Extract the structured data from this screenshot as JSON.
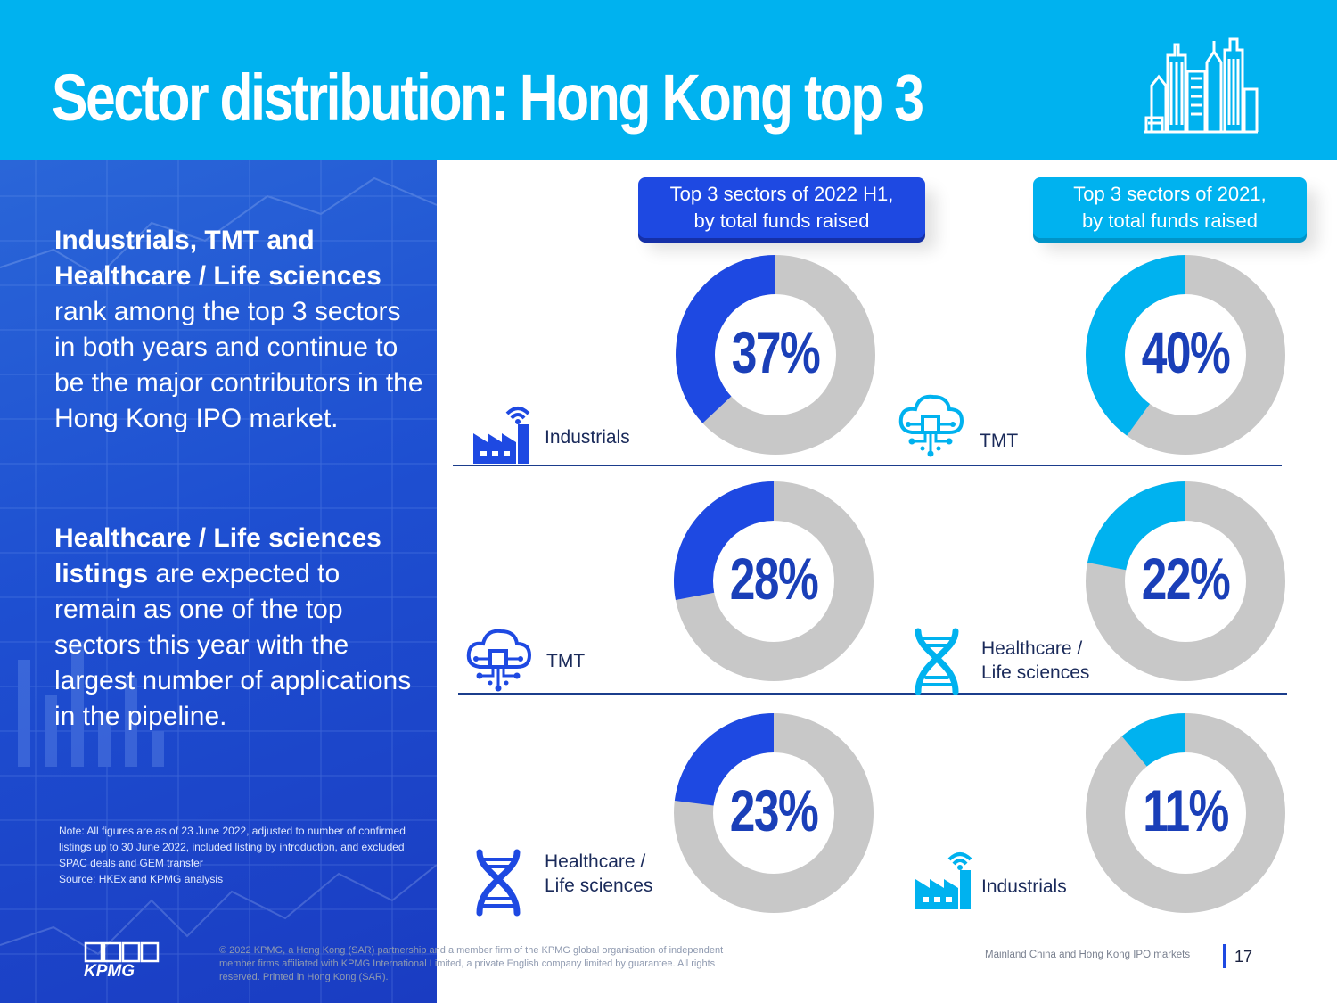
{
  "header": {
    "title": "Sector distribution: Hong Kong top 3",
    "icon": "hong-kong-skyline-icon"
  },
  "left_panel": {
    "para1_bold": "Industrials, TMT and Healthcare / Life sciences",
    "para1_rest": " rank among the top 3 sectors in both years and continue to be the major contributors in the Hong Kong IPO market.",
    "para2_bold": "Healthcare / Life sciences listings",
    "para2_rest": " are expected to remain as one of the top sectors this year with the largest number of applications in the pipeline.",
    "note_line1": "Note: All figures are as of 23 June 2022, adjusted to number of confirmed listings up to 30 June 2022, included listing by introduction, and excluded SPAC deals and GEM transfer",
    "note_line2": "Source: HKEx and KPMG analysis"
  },
  "footer": {
    "logo_text": "KPMG",
    "copyright": "© 2022 KPMG, a Hong Kong (SAR) partnership and a member firm of the KPMG global organisation of independent member firms affiliated with KPMG International Limited, a private English company limited by guarantee. All rights reserved. Printed in Hong Kong (SAR).",
    "caption": "Mainland China and Hong Kong IPO markets",
    "page_number": "17"
  },
  "colors": {
    "header_bg": "#00b2ef",
    "series_2022": "#1e49e2",
    "series_2021": "#00b2ef",
    "remainder": "#c8c8c8",
    "value_text": "#1a3fb8"
  },
  "chart_data": [
    {
      "type": "pie",
      "variant": "donut",
      "title": "Top 3 sectors of 2022 H1, by total funds raised",
      "title_line1": "Top 3 sectors of 2022 H1,",
      "title_line2": "by total funds raised",
      "unit": "%",
      "series": [
        {
          "sector": "Industrials",
          "value": 37,
          "label": "37%",
          "icon": "factory-icon",
          "name_lines": [
            "Industrials"
          ]
        },
        {
          "sector": "TMT",
          "value": 28,
          "label": "28%",
          "icon": "cloud-circuit-icon",
          "name_lines": [
            "TMT"
          ]
        },
        {
          "sector": "Healthcare / Life sciences",
          "value": 23,
          "label": "23%",
          "icon": "dna-icon",
          "name_lines": [
            "Healthcare /",
            "Life sciences"
          ]
        }
      ]
    },
    {
      "type": "pie",
      "variant": "donut",
      "title": "Top 3 sectors of 2021, by total funds raised",
      "title_line1": "Top 3 sectors of 2021,",
      "title_line2": "by total funds raised",
      "unit": "%",
      "series": [
        {
          "sector": "TMT",
          "value": 40,
          "label": "40%",
          "icon": "cloud-circuit-icon",
          "name_lines": [
            "TMT"
          ]
        },
        {
          "sector": "Healthcare / Life sciences",
          "value": 22,
          "label": "22%",
          "icon": "dna-icon",
          "name_lines": [
            "Healthcare /",
            "Life sciences"
          ]
        },
        {
          "sector": "Industrials",
          "value": 11,
          "label": "11%",
          "icon": "factory-icon",
          "name_lines": [
            "Industrials"
          ]
        }
      ]
    }
  ]
}
